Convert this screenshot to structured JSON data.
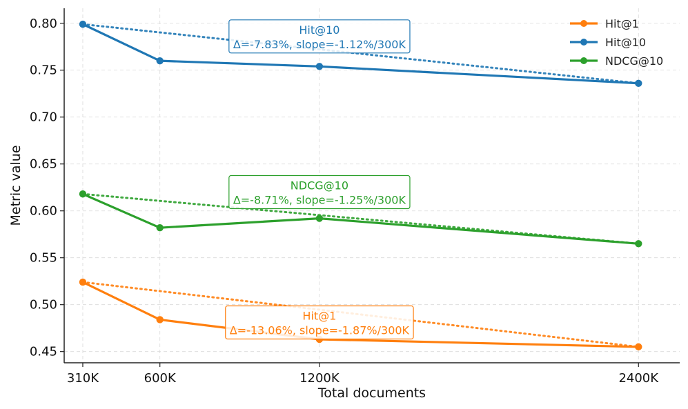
{
  "chart_data": {
    "type": "line",
    "title": "",
    "xlabel": "Total documents",
    "ylabel": "Metric value",
    "categories": [
      "310K",
      "600K",
      "1200K",
      "2400K"
    ],
    "x": [
      310,
      600,
      1200,
      2400
    ],
    "xlim": [
      240,
      2555
    ],
    "ylim": [
      0.438,
      0.816
    ],
    "yticks": [
      0.45,
      0.5,
      0.55,
      0.6,
      0.65,
      0.7,
      0.75,
      0.8
    ],
    "ytick_labels": [
      "0.45",
      "0.50",
      "0.55",
      "0.60",
      "0.65",
      "0.70",
      "0.75",
      "0.80"
    ],
    "grid": true,
    "legend_position": "top-right",
    "series": [
      {
        "name": "Hit@1",
        "color": "#ff7f0e",
        "values": [
          0.524,
          0.484,
          0.463,
          0.455
        ],
        "trend": [
          0.524,
          0.455
        ],
        "annotation": {
          "title": "Hit@1",
          "text": "Δ=-13.06%, slope=-1.87%/300K",
          "x": 1200,
          "y": 0.481
        }
      },
      {
        "name": "Hit@10",
        "color": "#1f77b4",
        "values": [
          0.799,
          0.76,
          0.754,
          0.736
        ],
        "trend": [
          0.799,
          0.736
        ],
        "annotation": {
          "title": "Hit@10",
          "text": "Δ=-7.83%, slope=-1.12%/300K",
          "x": 1200,
          "y": 0.786
        }
      },
      {
        "name": "NDCG@10",
        "color": "#2ca02c",
        "values": [
          0.618,
          0.582,
          0.592,
          0.565
        ],
        "trend": [
          0.618,
          0.565
        ],
        "annotation": {
          "title": "NDCG@10",
          "text": "Δ=-8.71%, slope=-1.25%/300K",
          "x": 1200,
          "y": 0.62
        }
      }
    ]
  }
}
